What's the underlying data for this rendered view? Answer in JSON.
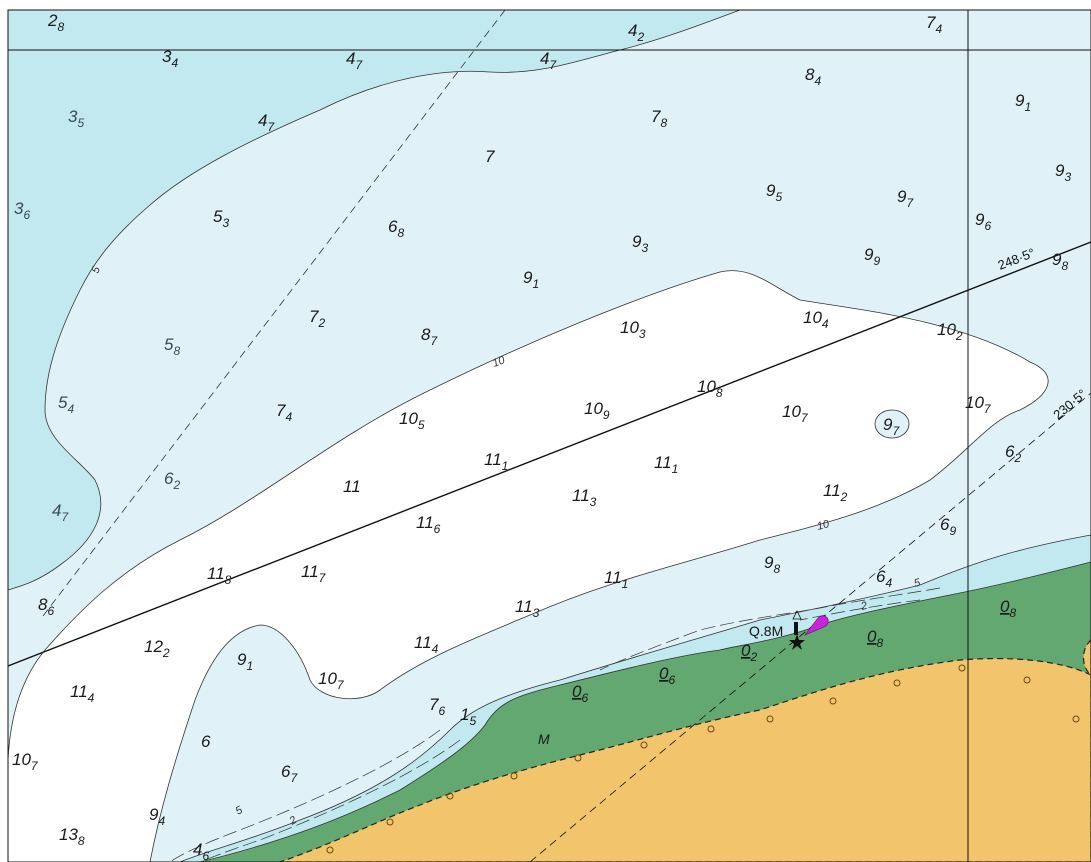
{
  "colors": {
    "shallow_dark": "#c2e8f0",
    "shallow_light": "#e0f2f8",
    "deep_water": "#ffffff",
    "drying": "#62a870",
    "land": "#f2c56d",
    "light_flare": "#cc22dd"
  },
  "bearings": [
    {
      "text": "248·5°"
    },
    {
      "text": "230·5°"
    }
  ],
  "light": {
    "text": "Q.8M"
  },
  "seabed": {
    "text": "M"
  },
  "contour_labels": [
    "5",
    "10",
    "10",
    "5",
    "2",
    "5",
    "2"
  ],
  "soundings": [
    {
      "main": "2",
      "sub": "8"
    },
    {
      "main": "3",
      "sub": "4"
    },
    {
      "main": "4",
      "sub": "7"
    },
    {
      "main": "4",
      "sub": "7"
    },
    {
      "main": "4",
      "sub": "2"
    },
    {
      "main": "7",
      "sub": "4"
    },
    {
      "main": "8",
      "sub": "4"
    },
    {
      "main": "3",
      "sub": "5"
    },
    {
      "main": "4",
      "sub": "7"
    },
    {
      "main": "7",
      "sub": "8"
    },
    {
      "main": "9",
      "sub": "1"
    },
    {
      "main": "7",
      "sub": ""
    },
    {
      "main": "9",
      "sub": "3"
    },
    {
      "main": "3",
      "sub": "6"
    },
    {
      "main": "5",
      "sub": "3"
    },
    {
      "main": "6",
      "sub": "8"
    },
    {
      "main": "9",
      "sub": "5"
    },
    {
      "main": "9",
      "sub": "7"
    },
    {
      "main": "9",
      "sub": "6"
    },
    {
      "main": "9",
      "sub": "3"
    },
    {
      "main": "9",
      "sub": "9"
    },
    {
      "main": "9",
      "sub": "8"
    },
    {
      "main": "9",
      "sub": "1"
    },
    {
      "main": "7",
      "sub": "2"
    },
    {
      "main": "8",
      "sub": "7"
    },
    {
      "main": "10",
      "sub": "3"
    },
    {
      "main": "10",
      "sub": "4"
    },
    {
      "main": "10",
      "sub": "2"
    },
    {
      "main": "5",
      "sub": "8"
    },
    {
      "main": "5",
      "sub": "4"
    },
    {
      "main": "7",
      "sub": "4"
    },
    {
      "main": "10",
      "sub": "5"
    },
    {
      "main": "10",
      "sub": "9"
    },
    {
      "main": "10",
      "sub": "8"
    },
    {
      "main": "10",
      "sub": "7"
    },
    {
      "main": "9",
      "sub": "7"
    },
    {
      "main": "10",
      "sub": "7"
    },
    {
      "main": "6",
      "sub": "2"
    },
    {
      "main": "11",
      "sub": "1"
    },
    {
      "main": "11",
      "sub": "1"
    },
    {
      "main": "6",
      "sub": "2"
    },
    {
      "main": "11",
      "sub": ""
    },
    {
      "main": "11",
      "sub": "3"
    },
    {
      "main": "11",
      "sub": "2"
    },
    {
      "main": "4",
      "sub": "7"
    },
    {
      "main": "11",
      "sub": "6"
    },
    {
      "main": "6",
      "sub": "9"
    },
    {
      "main": "11",
      "sub": "8"
    },
    {
      "main": "11",
      "sub": "7"
    },
    {
      "main": "9",
      "sub": "8"
    },
    {
      "main": "6",
      "sub": "4"
    },
    {
      "main": "11",
      "sub": "1"
    },
    {
      "main": "8",
      "sub": "6"
    },
    {
      "main": "11",
      "sub": "3"
    },
    {
      "main": "0",
      "sub": "8"
    },
    {
      "main": "12",
      "sub": "2"
    },
    {
      "main": "11",
      "sub": "4"
    },
    {
      "main": "0",
      "sub": "8"
    },
    {
      "main": "0",
      "sub": "2"
    },
    {
      "main": "9",
      "sub": "1"
    },
    {
      "main": "10",
      "sub": "7"
    },
    {
      "main": "0",
      "sub": "6"
    },
    {
      "main": "11",
      "sub": "4"
    },
    {
      "main": "0",
      "sub": "6"
    },
    {
      "main": "7",
      "sub": "6"
    },
    {
      "main": "1",
      "sub": "5"
    },
    {
      "main": "6",
      "sub": ""
    },
    {
      "main": "10",
      "sub": "7"
    },
    {
      "main": "6",
      "sub": "7"
    },
    {
      "main": "9",
      "sub": "4"
    },
    {
      "main": "13",
      "sub": "8"
    },
    {
      "main": "4",
      "sub": "6"
    }
  ]
}
